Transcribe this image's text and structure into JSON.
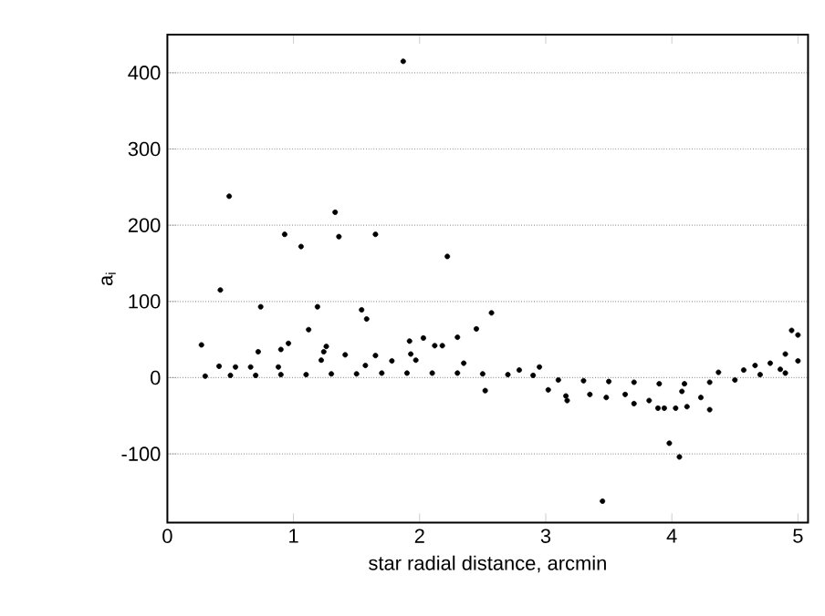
{
  "chart_data": {
    "type": "scatter",
    "xlabel": "star radial distance, arcmin",
    "ylabel": "a$_{i}$",
    "xlim": [
      0,
      5.08
    ],
    "ylim": [
      -190,
      450
    ],
    "xticks": [
      0,
      1,
      2,
      3,
      4,
      5
    ],
    "yticks": [
      -100,
      0,
      100,
      200,
      300,
      400
    ],
    "grid": "y",
    "marker": "circle",
    "series": [
      {
        "color": "#000000",
        "x": [
          1.87,
          0.49,
          1.33,
          0.93,
          1.06,
          1.36,
          1.65,
          2.22,
          0.42,
          0.74,
          1.19,
          1.54,
          1.58,
          2.57,
          2.45,
          1.12,
          0.27,
          1.92,
          2.03,
          2.3,
          0.96,
          0.9,
          0.72,
          1.26,
          1.24,
          1.41,
          1.65,
          2.12,
          2.18,
          1.22,
          0.41,
          0.54,
          0.66,
          0.88,
          1.78,
          1.93,
          1.97,
          1.57,
          2.35,
          2.52,
          4.95,
          5.0,
          4.9,
          5.0,
          3.45,
          3.98,
          4.06,
          3.17,
          3.16,
          3.35,
          3.48,
          3.63,
          3.7,
          3.82,
          3.89,
          3.94,
          4.03,
          4.12,
          4.3,
          4.23,
          4.08,
          3.02,
          2.95,
          2.79,
          4.37,
          4.57,
          4.66,
          4.78,
          4.86,
          0.3,
          0.5,
          0.7,
          0.9,
          1.1,
          1.3,
          1.5,
          1.7,
          1.9,
          2.1,
          2.3,
          2.5,
          2.7,
          2.9,
          3.1,
          3.3,
          3.5,
          3.7,
          3.9,
          4.1,
          4.3,
          4.5,
          4.7,
          4.9
        ],
        "values": [
          415,
          238,
          217,
          188,
          172,
          185,
          188,
          159,
          115,
          93,
          93,
          89,
          77,
          85,
          64,
          63,
          43,
          48,
          52,
          53,
          45,
          37,
          34,
          41,
          34,
          30,
          29,
          42,
          42,
          23,
          15,
          14,
          14,
          14,
          22,
          31,
          23,
          16,
          19,
          -17,
          62,
          56,
          31,
          22,
          -162,
          -86,
          -104,
          -30,
          -24,
          -22,
          -26,
          -22,
          -34,
          -30,
          -40,
          -40,
          -40,
          -38,
          -42,
          -26,
          -18,
          -16,
          14,
          10,
          7,
          10,
          16,
          19,
          11,
          2,
          3,
          3,
          4,
          4,
          5,
          5,
          6,
          6,
          6,
          6,
          5,
          4,
          3,
          -3,
          -4,
          -5,
          -6,
          -8,
          -8,
          -6,
          -3,
          4,
          6
        ]
      }
    ]
  }
}
